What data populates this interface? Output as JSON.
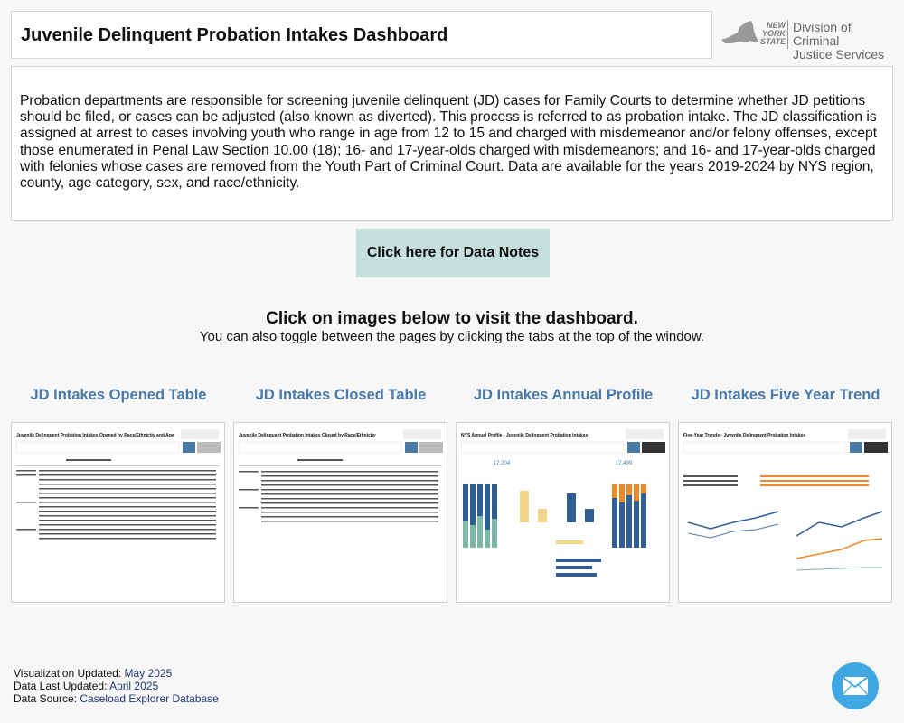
{
  "header": {
    "title": "Juvenile Delinquent Probation Intakes Dashboard",
    "logo": {
      "state": "NEW\nYORK\nSTATE",
      "agency": "Division of Criminal Justice Services"
    }
  },
  "description": "Probation departments are responsible for screening juvenile delinquent (JD) cases for Family Courts to determine whether JD petitions should be filed, or cases can be adjusted (also known as diverted). This process is referred to as probation intake. The JD classification is assigned at arrest to cases involving youth who range in age from 12 to 15 and charged with misdemeanor and/or felony offenses, except those enumerated in Penal Law Section 10.00 (18); 16- and 17-year-olds charged with misdemeanors; and 16- and 17-year-olds charged with felonies whose cases are removed from the Youth Part of Criminal Court. Data are available for the years 2019-2024 by NYS region, county, age category, sex, and race/ethnicity.",
  "data_notes_button": "Click here for Data Notes",
  "cta": {
    "heading": "Click on images below to visit the dashboard.",
    "sub": "You can also toggle between the pages by clicking the tabs at the top of the window."
  },
  "cards": [
    {
      "title": "JD Intakes Opened Table",
      "thumb_title": "Juvenile Delinquent Probation Intakes Opened by Race/Ethnicity and Age"
    },
    {
      "title": "JD Intakes Closed Table",
      "thumb_title": "Juvenile Delinquent Probation Intakes Closed by Race/Ethnicity"
    },
    {
      "title": "JD Intakes Annual Profile",
      "thumb_title": "NYS Annual Profile - Juvenile Delinquent Probation Intakes",
      "opened_value": "17,204",
      "closed_value": "17,499"
    },
    {
      "title": "JD Intakes Five Year Trend",
      "thumb_title": "Five-Year Trends - Juvenile Delinquent Probation Intakes"
    }
  ],
  "footer": {
    "viz_label": "Visualization Updated:",
    "viz_value": "May 2025",
    "data_label": "Data Last Updated:",
    "data_value": "April 2025",
    "source_label": "Data Source:",
    "source_value": "Caseload Explorer Database"
  },
  "colors": {
    "accent": "#4a7aa8",
    "button": "#c5dfdb",
    "mail": "#3fa7e1",
    "navy": "#1f3a7a"
  },
  "icons": {
    "mail": "envelope-icon",
    "logo": "nys-state-shape-icon"
  }
}
